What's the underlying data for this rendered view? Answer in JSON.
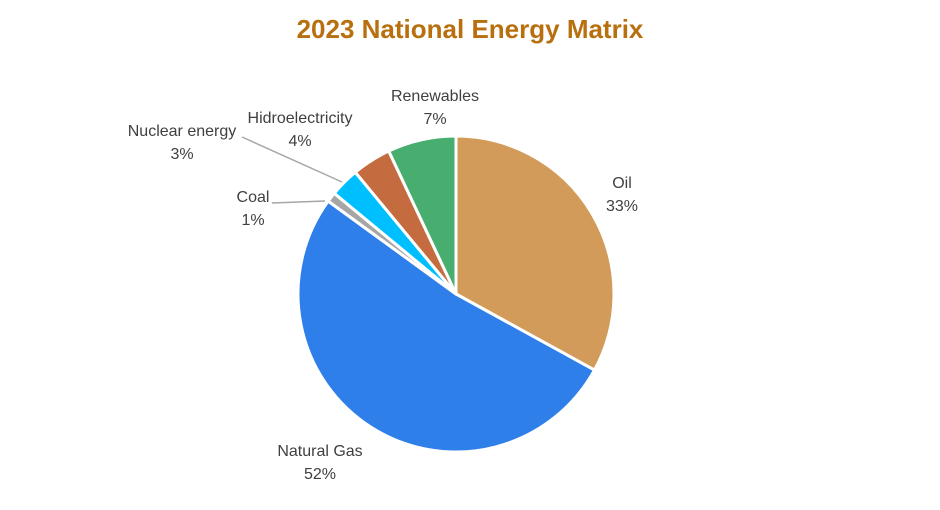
{
  "chart_data": {
    "type": "pie",
    "title": "2023 National Energy Matrix",
    "title_color": "#B8700F",
    "slices": [
      {
        "name": "Oil",
        "value": 33,
        "label": "33%",
        "color": "#D39B5A"
      },
      {
        "name": "Natural Gas",
        "value": 52,
        "label": "52%",
        "color": "#2F7FEA"
      },
      {
        "name": "Coal",
        "value": 1,
        "label": "1%",
        "color": "#A6A6A6"
      },
      {
        "name": "Nuclear energy",
        "value": 3,
        "label": "3%",
        "color": "#00BFFF"
      },
      {
        "name": "Hidroelectricity",
        "value": 4,
        "label": "4%",
        "color": "#C46B3F"
      },
      {
        "name": "Renewables",
        "value": 7,
        "label": "7%",
        "color": "#48AE6F"
      }
    ],
    "start_angle_deg": 0,
    "direction": "clockwise",
    "legend": "none"
  }
}
